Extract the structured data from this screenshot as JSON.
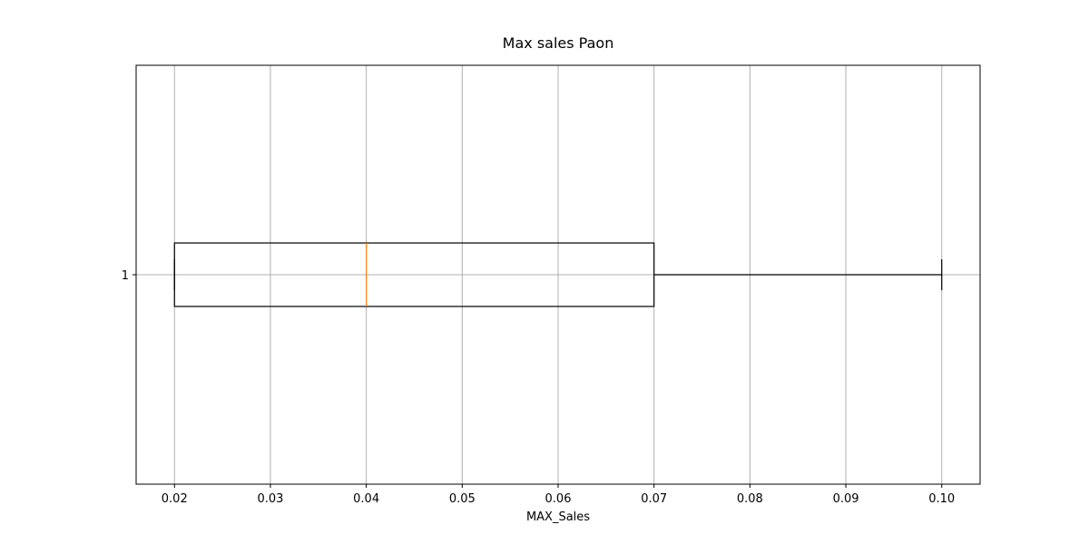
{
  "chart_data": {
    "type": "box",
    "orientation": "horizontal",
    "title": "Max sales Paon",
    "xlabel": "MAX_Sales",
    "ylabel": "",
    "xlim": [
      0.016,
      0.104
    ],
    "xticks": [
      0.02,
      0.03,
      0.04,
      0.05,
      0.06,
      0.07,
      0.08,
      0.09,
      0.1
    ],
    "xtick_labels": [
      "0.02",
      "0.03",
      "0.04",
      "0.05",
      "0.06",
      "0.07",
      "0.08",
      "0.09",
      "0.10"
    ],
    "category_labels": [
      "1"
    ],
    "grid": true,
    "boxes": [
      {
        "whisker_low": 0.02,
        "q1": 0.02,
        "median": 0.04,
        "q3": 0.07,
        "whisker_high": 0.1
      }
    ],
    "colors": {
      "box": "#000000",
      "median": "#ff7f0e",
      "grid": "#b0b0b0"
    }
  }
}
